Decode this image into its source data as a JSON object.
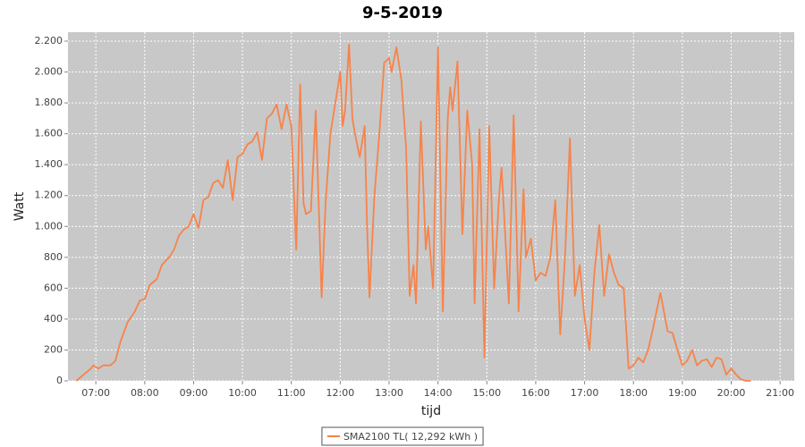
{
  "chart_data": {
    "type": "line",
    "title": "9-5-2019",
    "x_label": "tijd",
    "y_label": "Watt",
    "x": [
      6.6,
      6.75,
      6.9,
      6.95,
      7.05,
      7.15,
      7.3,
      7.4,
      7.5,
      7.65,
      7.8,
      7.9,
      8.0,
      8.1,
      8.25,
      8.35,
      8.5,
      8.6,
      8.7,
      8.8,
      8.9,
      9.0,
      9.1,
      9.2,
      9.3,
      9.4,
      9.5,
      9.6,
      9.7,
      9.8,
      9.9,
      10.0,
      10.1,
      10.2,
      10.3,
      10.4,
      10.5,
      10.6,
      10.7,
      10.8,
      10.9,
      11.0,
      11.1,
      11.18,
      11.25,
      11.3,
      11.4,
      11.5,
      11.62,
      11.7,
      11.8,
      11.9,
      12.0,
      12.05,
      12.1,
      12.18,
      12.25,
      12.3,
      12.4,
      12.5,
      12.55,
      12.6,
      12.7,
      12.8,
      12.9,
      13.0,
      13.05,
      13.15,
      13.25,
      13.35,
      13.42,
      13.5,
      13.55,
      13.65,
      13.75,
      13.8,
      13.9,
      14.0,
      14.1,
      14.2,
      14.25,
      14.3,
      14.4,
      14.5,
      14.6,
      14.7,
      14.75,
      14.85,
      14.95,
      15.05,
      15.15,
      15.25,
      15.3,
      15.35,
      15.45,
      15.55,
      15.65,
      15.75,
      15.8,
      15.9,
      16.0,
      16.1,
      16.2,
      16.3,
      16.4,
      16.5,
      16.6,
      16.7,
      16.8,
      16.9,
      17.0,
      17.1,
      17.2,
      17.3,
      17.4,
      17.5,
      17.6,
      17.7,
      17.8,
      17.9,
      18.0,
      18.1,
      18.2,
      18.3,
      18.4,
      18.55,
      18.7,
      18.8,
      18.9,
      19.0,
      19.1,
      19.2,
      19.3,
      19.4,
      19.5,
      19.6,
      19.7,
      19.8,
      19.9,
      20.0,
      20.1,
      20.2,
      20.3,
      20.4
    ],
    "series": [
      {
        "name": "SMA2100 TL( 12,292 kWh )",
        "color": "#f7834a",
        "values": [
          0,
          40,
          80,
          100,
          80,
          100,
          100,
          130,
          250,
          380,
          450,
          520,
          530,
          620,
          660,
          750,
          800,
          850,
          940,
          980,
          1000,
          1080,
          990,
          1170,
          1190,
          1280,
          1300,
          1250,
          1430,
          1170,
          1450,
          1470,
          1530,
          1550,
          1610,
          1430,
          1700,
          1730,
          1790,
          1630,
          1790,
          1650,
          850,
          1920,
          1150,
          1080,
          1100,
          1750,
          540,
          1150,
          1600,
          1800,
          2000,
          1650,
          1750,
          2180,
          1700,
          1600,
          1450,
          1650,
          1000,
          540,
          1200,
          1600,
          2060,
          2090,
          2000,
          2160,
          1950,
          1500,
          550,
          750,
          500,
          1680,
          850,
          1000,
          600,
          2160,
          450,
          1700,
          1900,
          1750,
          2070,
          950,
          1750,
          1400,
          500,
          1630,
          150,
          1650,
          600,
          1200,
          1380,
          1100,
          500,
          1720,
          450,
          1240,
          800,
          920,
          650,
          700,
          680,
          800,
          1170,
          300,
          800,
          1570,
          550,
          750,
          400,
          200,
          700,
          1010,
          550,
          820,
          700,
          620,
          600,
          80,
          100,
          150,
          120,
          200,
          340,
          570,
          320,
          310,
          200,
          100,
          130,
          200,
          100,
          130,
          140,
          90,
          150,
          140,
          40,
          80,
          40,
          10,
          0,
          0
        ]
      }
    ],
    "xlim": [
      6.43,
      21.29
    ],
    "xticks": [
      {
        "value": 7,
        "label": "07:00"
      },
      {
        "value": 8,
        "label": "08:00"
      },
      {
        "value": 9,
        "label": "09:00"
      },
      {
        "value": 10,
        "label": "10:00"
      },
      {
        "value": 11,
        "label": "11:00"
      },
      {
        "value": 12,
        "label": "12:00"
      },
      {
        "value": 13,
        "label": "13:00"
      },
      {
        "value": 14,
        "label": "14:00"
      },
      {
        "value": 15,
        "label": "15:00"
      },
      {
        "value": 16,
        "label": "16:00"
      },
      {
        "value": 17,
        "label": "17:00"
      },
      {
        "value": 18,
        "label": "18:00"
      },
      {
        "value": 19,
        "label": "19:00"
      },
      {
        "value": 20,
        "label": "20:00"
      },
      {
        "value": 21,
        "label": "21:00"
      }
    ],
    "ylim": [
      0,
      2258
    ],
    "yticks": [
      0,
      200,
      400,
      600,
      800,
      {
        "value": 1000,
        "label": "1.000"
      },
      {
        "value": 1200,
        "label": "1.200"
      },
      {
        "value": 1400,
        "label": "1.400"
      },
      {
        "value": 1600,
        "label": "1.600"
      },
      {
        "value": 1800,
        "label": "1.800"
      },
      {
        "value": 2000,
        "label": "2.000"
      },
      {
        "value": 2200,
        "label": "2.200"
      }
    ],
    "grid": true,
    "legend": "bottom"
  }
}
